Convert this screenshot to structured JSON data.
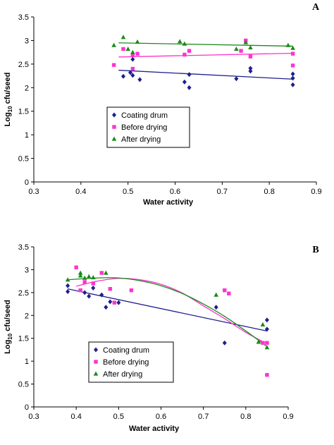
{
  "chart_data": [
    {
      "type": "scatter",
      "panel_label": "A",
      "xlabel": "Water activity",
      "ylabel": "Log10 cfu/seed",
      "ylabel_main": "Log",
      "ylabel_sub": "10",
      "ylabel_rest": " cfu/seed",
      "xlim": [
        0.3,
        0.9
      ],
      "ylim": [
        0,
        3.5
      ],
      "x_ticks": [
        0.3,
        0.4,
        0.5,
        0.6,
        0.7,
        0.8,
        0.9
      ],
      "y_ticks": [
        0,
        0.5,
        1,
        1.5,
        2,
        2.5,
        3,
        3.5
      ],
      "x_tick_labels": [
        "0.3",
        "0.4",
        "0.5",
        "0.6",
        "0.7",
        "0.8",
        "0.9"
      ],
      "y_tick_labels": [
        "0",
        "0.5",
        "1",
        "1.5",
        "2",
        "2.5",
        "3",
        "3.5"
      ],
      "grid": false,
      "legend_position": "center-left",
      "series": [
        {
          "name": "Coating drum",
          "marker": "diamond",
          "color": "#1f1f8f",
          "x": [
            0.49,
            0.505,
            0.51,
            0.51,
            0.525,
            0.62,
            0.63,
            0.63,
            0.73,
            0.76,
            0.76,
            0.85,
            0.85,
            0.85
          ],
          "y": [
            2.24,
            2.32,
            2.26,
            2.6,
            2.17,
            2.12,
            2.28,
            2.0,
            2.19,
            2.41,
            2.35,
            2.29,
            2.2,
            2.06
          ],
          "trend": {
            "type": "linear",
            "x": [
              0.48,
              0.85
            ],
            "y": [
              2.37,
              2.18
            ]
          }
        },
        {
          "name": "Before drying",
          "marker": "square",
          "color": "#ff33cc",
          "x": [
            0.47,
            0.49,
            0.51,
            0.51,
            0.52,
            0.62,
            0.63,
            0.74,
            0.75,
            0.76,
            0.85,
            0.85
          ],
          "y": [
            2.48,
            2.82,
            2.7,
            2.4,
            2.72,
            2.7,
            2.78,
            2.78,
            3.0,
            2.66,
            2.72,
            2.47
          ],
          "trend": {
            "type": "linear",
            "x": [
              0.48,
              0.85
            ],
            "y": [
              2.65,
              2.73
            ]
          }
        },
        {
          "name": "After drying",
          "marker": "triangle",
          "color": "#1a8a1a",
          "x": [
            0.47,
            0.49,
            0.5,
            0.51,
            0.52,
            0.61,
            0.62,
            0.73,
            0.75,
            0.76,
            0.84,
            0.85
          ],
          "y": [
            2.9,
            3.07,
            2.82,
            2.75,
            2.97,
            2.98,
            2.93,
            2.82,
            2.96,
            2.85,
            2.9,
            2.84
          ],
          "trend": {
            "type": "linear",
            "x": [
              0.48,
              0.85
            ],
            "y": [
              2.95,
              2.88
            ]
          }
        }
      ]
    },
    {
      "type": "scatter",
      "panel_label": "B",
      "xlabel": "Water activity",
      "ylabel": "Log10 cfu/seed",
      "ylabel_main": "Log",
      "ylabel_sub": "10",
      "ylabel_rest": " cfu/seed",
      "xlim": [
        0.3,
        0.9
      ],
      "ylim": [
        0,
        3.5
      ],
      "x_ticks": [
        0.3,
        0.4,
        0.5,
        0.6,
        0.7,
        0.8,
        0.9
      ],
      "y_ticks": [
        0,
        0.5,
        1,
        1.5,
        2,
        2.5,
        3,
        3.5
      ],
      "x_tick_labels": [
        "0.3",
        "0.4",
        "0.5",
        "0.6",
        "0.7",
        "0.8",
        "0.9"
      ],
      "y_tick_labels": [
        "0",
        "0.5",
        "1",
        "1.5",
        "2",
        "2.5",
        "3",
        "3.5"
      ],
      "grid": false,
      "legend_position": "bottom-left",
      "series": [
        {
          "name": "Coating drum",
          "marker": "diamond",
          "color": "#1f1f8f",
          "x": [
            0.38,
            0.38,
            0.42,
            0.43,
            0.44,
            0.46,
            0.47,
            0.48,
            0.5,
            0.73,
            0.75,
            0.85,
            0.85
          ],
          "y": [
            2.52,
            2.65,
            2.5,
            2.42,
            2.6,
            2.45,
            2.18,
            2.3,
            2.28,
            2.18,
            1.4,
            1.9,
            1.7
          ],
          "trend": {
            "type": "linear",
            "x": [
              0.38,
              0.85
            ],
            "y": [
              2.58,
              1.66
            ]
          }
        },
        {
          "name": "Before drying",
          "marker": "square",
          "color": "#ff33cc",
          "x": [
            0.4,
            0.41,
            0.42,
            0.44,
            0.46,
            0.48,
            0.49,
            0.53,
            0.75,
            0.76,
            0.84,
            0.85,
            0.85
          ],
          "y": [
            3.05,
            2.55,
            2.73,
            2.7,
            2.93,
            2.58,
            2.28,
            2.55,
            2.55,
            2.48,
            1.4,
            1.4,
            0.7
          ],
          "trend": {
            "type": "poly2",
            "x": [
              0.4,
              0.45,
              0.5,
              0.55,
              0.6,
              0.65,
              0.7,
              0.75,
              0.8,
              0.85
            ],
            "y": [
              2.64,
              2.75,
              2.81,
              2.78,
              2.68,
              2.49,
              2.21,
              1.93,
              1.63,
              1.38
            ]
          }
        },
        {
          "name": "After drying",
          "marker": "triangle",
          "color": "#1a8a1a",
          "x": [
            0.38,
            0.41,
            0.41,
            0.42,
            0.43,
            0.44,
            0.47,
            0.73,
            0.83,
            0.84,
            0.85
          ],
          "y": [
            2.78,
            2.93,
            2.87,
            2.82,
            2.85,
            2.83,
            2.93,
            2.45,
            1.42,
            1.8,
            1.3
          ],
          "trend": {
            "type": "poly2",
            "x": [
              0.38,
              0.45,
              0.5,
              0.55,
              0.6,
              0.65,
              0.7,
              0.75,
              0.8,
              0.85
            ],
            "y": [
              2.78,
              2.82,
              2.82,
              2.76,
              2.65,
              2.48,
              2.25,
              1.98,
              1.66,
              1.32
            ]
          }
        }
      ]
    }
  ]
}
